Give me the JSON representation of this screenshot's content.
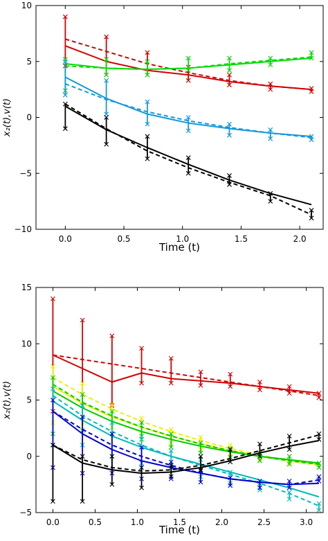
{
  "chart_data": [
    {
      "type": "line",
      "xlabel": "Time (t)",
      "ylabel": "x₂(t),v(t)",
      "xlim": [
        -0.25,
        2.2
      ],
      "ylim": [
        -10,
        10
      ],
      "xticks": [
        0.0,
        0.5,
        1.0,
        1.5,
        2.0
      ],
      "xtick_labels": [
        "0.0",
        "0.5",
        "1.0",
        "1.5",
        "2.0"
      ],
      "yticks": [
        -10,
        -5,
        0,
        5,
        10
      ],
      "ytick_labels": [
        "−10",
        "−5",
        "0",
        "5",
        "10"
      ],
      "grid": false,
      "series": [
        {
          "color": "#d40000",
          "x": [
            0,
            0.35,
            0.7,
            1.05,
            1.4,
            1.75,
            2.1
          ],
          "solid": [
            [
              6.4,
              5.0
            ],
            [
              5.0,
              4.2
            ],
            [
              4.2,
              3.8
            ],
            [
              3.8,
              3.2
            ],
            [
              3.2,
              2.8
            ],
            [
              2.8,
              2.5
            ],
            [
              2.5,
              2.4
            ]
          ],
          "dashed": [
            7.0,
            5.9,
            4.8,
            4.0,
            3.3,
            2.8,
            2.5
          ],
          "bars": [
            [
              4.6,
              9.0
            ],
            [
              3.8,
              7.2
            ],
            [
              3.8,
              5.8
            ],
            [
              3.3,
              4.5
            ],
            [
              2.9,
              3.8
            ],
            [
              2.5,
              3.0
            ],
            [
              2.3,
              2.6
            ]
          ]
        },
        {
          "color": "#00dd00",
          "x": [
            0,
            0.35,
            0.7,
            1.05,
            1.4,
            1.75,
            2.1
          ],
          "solid": [
            [
              4.8,
              4.4
            ],
            [
              4.4,
              4.3
            ],
            [
              4.3,
              4.4
            ],
            [
              4.4,
              4.7
            ],
            [
              4.7,
              5.0
            ],
            [
              5.0,
              5.3
            ],
            [
              5.3,
              5.7
            ]
          ],
          "dashed": [
            4.6,
            4.4,
            4.3,
            4.4,
            4.8,
            5.1,
            5.4
          ],
          "bars": [
            [
              2.4,
              5.2
            ],
            [
              3.8,
              5.2
            ],
            [
              3.8,
              5.0
            ],
            [
              4.2,
              5.3
            ],
            [
              4.2,
              5.3
            ],
            [
              4.7,
              5.3
            ],
            [
              5.3,
              5.8
            ]
          ]
        },
        {
          "color": "#1199dd",
          "x": [
            0,
            0.35,
            0.7,
            1.05,
            1.4,
            1.75,
            2.1
          ],
          "solid": [
            [
              3.6,
              1.7
            ],
            [
              1.7,
              0.3
            ],
            [
              0.3,
              -0.5
            ],
            [
              -0.5,
              -1.0
            ],
            [
              -1.0,
              -1.4
            ],
            [
              -1.4,
              -1.7
            ],
            [
              -1.7,
              -1.9
            ]
          ],
          "dashed": [
            3.0,
            1.6,
            0.5,
            -0.3,
            -0.9,
            -1.4,
            -1.8
          ],
          "bars": [
            [
              2.0,
              5.0
            ],
            [
              0.3,
              3.3
            ],
            [
              -0.6,
              1.4
            ],
            [
              -1.2,
              0.0
            ],
            [
              -1.6,
              -0.6
            ],
            [
              -1.9,
              -1.1
            ],
            [
              -2.0,
              -1.7
            ]
          ]
        },
        {
          "color": "#000000",
          "x": [
            0,
            0.35,
            0.7,
            1.05,
            1.4,
            1.75,
            2.1
          ],
          "solid": [
            [
              1.0,
              -1.1
            ],
            [
              -1.1,
              -2.7
            ],
            [
              -2.7,
              -4.2
            ],
            [
              -4.2,
              -5.6
            ],
            [
              -5.6,
              -6.8
            ],
            [
              -6.8,
              -7.8
            ],
            [
              -7.8,
              -8.6
            ]
          ],
          "dashed": [
            1.2,
            -1.0,
            -3.0,
            -4.5,
            -5.8,
            -7.0,
            -8.7
          ],
          "bars": [
            [
              -1.0,
              1.2
            ],
            [
              -2.4,
              0.0
            ],
            [
              -3.7,
              -1.7
            ],
            [
              -5.0,
              -3.6
            ],
            [
              -6.0,
              -5.2
            ],
            [
              -7.5,
              -6.8
            ],
            [
              -9.0,
              -8.3
            ]
          ]
        }
      ]
    },
    {
      "type": "line",
      "xlabel": "Time (t)",
      "ylabel": "x₂(t),v(t)",
      "xlim": [
        -0.2,
        3.2
      ],
      "ylim": [
        -5,
        15
      ],
      "xticks": [
        0.0,
        0.5,
        1.0,
        1.5,
        2.0,
        2.5,
        3.0
      ],
      "xtick_labels": [
        "0.0",
        "0.5",
        "1.0",
        "1.5",
        "2.0",
        "2.5",
        "3.0"
      ],
      "yticks": [
        -5,
        0,
        5,
        10,
        15
      ],
      "ytick_labels": [
        "−5",
        "0",
        "5",
        "10",
        "15"
      ],
      "grid": false,
      "series": [
        {
          "color": "#d40000",
          "x": [
            0,
            0.35,
            0.7,
            1.05,
            1.4,
            1.75,
            2.1,
            2.45,
            2.8,
            3.15
          ],
          "solid": [
            [
              9.0,
              7.8
            ],
            [
              7.8,
              6.6
            ],
            [
              6.6,
              7.4
            ],
            [
              7.4,
              6.9
            ],
            [
              6.9,
              6.7
            ],
            [
              6.7,
              6.5
            ],
            [
              6.5,
              6.2
            ],
            [
              6.2,
              5.9
            ],
            [
              5.9,
              5.6
            ],
            [
              5.6,
              5.4
            ]
          ],
          "dashed": [
            9.0,
            8.6,
            8.2,
            7.8,
            7.4,
            7.0,
            6.6,
            6.2,
            5.8,
            5.4
          ],
          "bars": [
            [
              4.0,
              14.0
            ],
            [
              4.5,
              12.1
            ],
            [
              4.5,
              10.7
            ],
            [
              6.5,
              9.6
            ],
            [
              6.5,
              8.7
            ],
            [
              6.3,
              7.5
            ],
            [
              6.2,
              7.3
            ],
            [
              5.9,
              6.6
            ],
            [
              5.6,
              6.2
            ],
            [
              5.2,
              5.6
            ]
          ]
        },
        {
          "color": "#eeee00",
          "x": [
            0,
            0.35,
            0.7,
            1.05,
            1.4,
            1.75,
            2.1,
            2.45,
            2.8,
            3.15
          ],
          "solid": [
            [
              6.2,
              4.7
            ],
            [
              4.7,
              3.5
            ],
            [
              3.5,
              2.6
            ],
            [
              2.6,
              1.8
            ],
            [
              1.8,
              1.1
            ],
            [
              1.1,
              0.5
            ],
            [
              0.5,
              0.0
            ],
            [
              0.0,
              -0.4
            ],
            [
              -0.4,
              -0.7
            ],
            [
              -0.7,
              -1.0
            ]
          ],
          "dashed": [
            7.0,
            5.5,
            4.2,
            3.1,
            2.2,
            1.4,
            0.7,
            0.1,
            -0.4,
            -0.8
          ],
          "bars": [
            [
              3.0,
              8.0
            ],
            [
              3.0,
              6.5
            ],
            [
              2.6,
              4.6
            ],
            [
              2.0,
              3.4
            ],
            [
              1.2,
              2.4
            ],
            [
              0.6,
              1.7
            ],
            [
              0.0,
              1.0
            ],
            [
              -0.3,
              0.3
            ],
            [
              -0.6,
              0.0
            ],
            [
              -1.0,
              -0.6
            ]
          ]
        },
        {
          "color": "#00cc00",
          "x": [
            0,
            0.35,
            0.7,
            1.05,
            1.4,
            1.75,
            2.1,
            2.45,
            2.8,
            3.15
          ],
          "solid": [
            [
              5.8,
              4.3
            ],
            [
              4.3,
              3.1
            ],
            [
              3.1,
              2.2
            ],
            [
              2.2,
              1.5
            ],
            [
              1.5,
              0.9
            ],
            [
              0.9,
              0.4
            ],
            [
              0.4,
              0.0
            ],
            [
              0.0,
              -0.3
            ],
            [
              -0.3,
              -0.6
            ],
            [
              -0.6,
              -0.9
            ]
          ],
          "dashed": [
            6.4,
            4.8,
            3.6,
            2.6,
            1.8,
            1.1,
            0.5,
            0.0,
            -0.4,
            -0.7
          ],
          "bars": [
            [
              2.0,
              7.0
            ],
            [
              2.3,
              5.5
            ],
            [
              2.0,
              4.0
            ],
            [
              1.5,
              3.0
            ],
            [
              0.8,
              2.0
            ],
            [
              0.3,
              1.2
            ],
            [
              -0.1,
              0.7
            ],
            [
              -0.4,
              0.3
            ],
            [
              -0.7,
              0.0
            ],
            [
              -1.0,
              -0.6
            ]
          ]
        },
        {
          "color": "#00bbbb",
          "x": [
            0,
            0.35,
            0.7,
            1.05,
            1.4,
            1.75,
            2.1,
            2.45,
            2.8,
            3.15
          ],
          "solid": [
            [
              4.9,
              3.2
            ],
            [
              3.2,
              1.8
            ],
            [
              1.8,
              0.8
            ],
            [
              0.8,
              0.0
            ],
            [
              0.0,
              -0.7
            ],
            [
              -0.7,
              -1.4
            ],
            [
              -1.4,
              -2.1
            ],
            [
              -2.1,
              -2.8
            ],
            [
              -2.8,
              -3.6
            ],
            [
              -3.6,
              -4.6
            ]
          ],
          "dashed": [
            5.4,
            3.6,
            2.2,
            1.0,
            0.0,
            -0.8,
            -1.6,
            -2.4,
            -3.3,
            -4.4
          ],
          "bars": [
            [
              1.0,
              6.0
            ],
            [
              1.0,
              4.5
            ],
            [
              0.0,
              3.0
            ],
            [
              -0.6,
              1.8
            ],
            [
              -1.0,
              0.5
            ],
            [
              -1.8,
              -0.3
            ],
            [
              -2.4,
              -1.4
            ],
            [
              -3.0,
              -2.4
            ],
            [
              -3.8,
              -3.2
            ],
            [
              -4.8,
              -4.2
            ]
          ]
        },
        {
          "color": "#0000cc",
          "x": [
            0,
            0.35,
            0.7,
            1.05,
            1.4,
            1.75,
            2.1,
            2.45,
            2.8,
            3.15
          ],
          "solid": [
            [
              4.0,
              2.0
            ],
            [
              2.0,
              0.6
            ],
            [
              0.6,
              -0.4
            ],
            [
              -0.4,
              -1.0
            ],
            [
              -1.0,
              -1.5
            ],
            [
              -1.5,
              -2.0
            ],
            [
              -2.0,
              -2.3
            ],
            [
              -2.3,
              -2.5
            ],
            [
              -2.5,
              -2.4
            ],
            [
              -2.4,
              -2.0
            ]
          ],
          "dashed": [
            4.0,
            2.4,
            1.0,
            0.0,
            -0.8,
            -1.5,
            -2.0,
            -2.3,
            -2.5,
            -2.1
          ],
          "bars": [
            [
              -1.0,
              5.0
            ],
            [
              -1.5,
              3.5
            ],
            [
              -1.5,
              2.0
            ],
            [
              -2.0,
              0.8
            ],
            [
              -2.0,
              -0.5
            ],
            [
              -2.3,
              -1.3
            ],
            [
              -2.6,
              -1.9
            ],
            [
              -2.8,
              -2.2
            ],
            [
              -2.8,
              -2.2
            ],
            [
              -2.2,
              -1.8
            ]
          ]
        },
        {
          "color": "#000000",
          "x": [
            0,
            0.35,
            0.7,
            1.05,
            1.4,
            1.75,
            2.1,
            2.45,
            2.8,
            3.15
          ],
          "solid": [
            [
              1.0,
              -0.6
            ],
            [
              -0.6,
              -1.2
            ],
            [
              -1.2,
              -1.5
            ],
            [
              -1.5,
              -1.4
            ],
            [
              -1.4,
              -1.0
            ],
            [
              -1.0,
              -0.4
            ],
            [
              -0.4,
              0.3
            ],
            [
              0.3,
              0.9
            ],
            [
              0.9,
              1.4
            ],
            [
              1.4,
              1.9
            ]
          ],
          "dashed": [
            1.0,
            -0.3,
            -1.0,
            -1.3,
            -1.2,
            -0.8,
            -0.2,
            0.5,
            1.2,
            1.9
          ],
          "bars": [
            [
              -4.0,
              1.0
            ],
            [
              -4.0,
              0.0
            ],
            [
              -2.5,
              0.0
            ],
            [
              -2.8,
              -1.0
            ],
            [
              -1.8,
              -0.8
            ],
            [
              -1.2,
              0.0
            ],
            [
              -0.5,
              0.6
            ],
            [
              0.0,
              1.1
            ],
            [
              0.6,
              1.8
            ],
            [
              1.5,
              2.0
            ]
          ]
        }
      ]
    }
  ]
}
